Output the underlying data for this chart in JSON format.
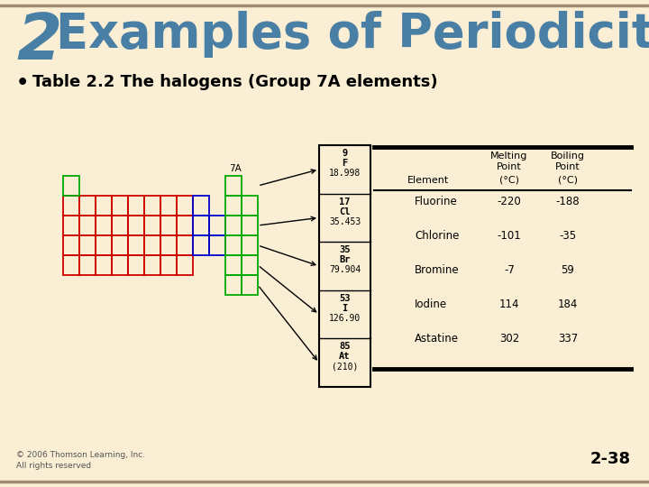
{
  "bg_color": "#faefd4",
  "title_number": "2",
  "title_text": "Examples of Periodicity",
  "title_color": "#4a7fa5",
  "bullet_text": "Table 2.2 The halogens (Group 7A elements)",
  "bullet_color": "#000000",
  "footer_left": "© 2006 Thomson Learning, Inc.\nAll rights reserved",
  "footer_right": "2-38",
  "data_table": {
    "elements": [
      "Fluorine",
      "Chlorine",
      "Bromine",
      "Iodine",
      "Astatine"
    ],
    "melting": [
      "-220",
      "-101",
      "-7",
      "114",
      "302"
    ],
    "boiling": [
      "-188",
      "-35",
      "59",
      "184",
      "337"
    ]
  },
  "label_7A": "7A"
}
